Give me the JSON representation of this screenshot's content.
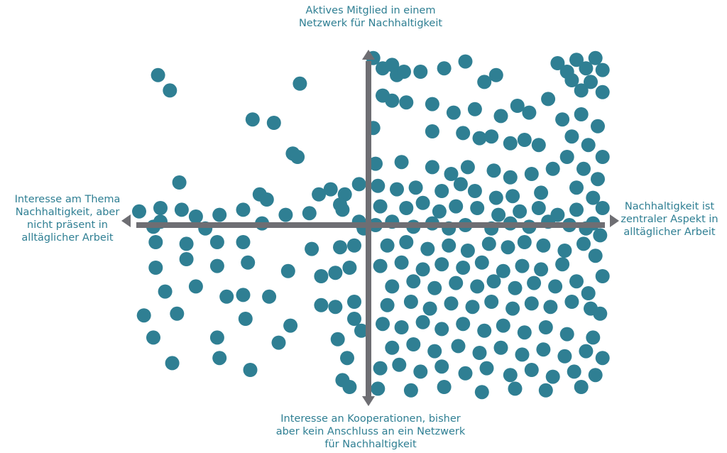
{
  "chart_data": {
    "type": "scatter",
    "title": "",
    "axes": {
      "top": [
        "Aktives Mitglied in einem",
        "Netzwerk für Nachhaltigkeit"
      ],
      "bottom": [
        "Interesse an Kooperationen, bisher",
        "aber kein Anschluss an ein Netzwerk",
        "für Nachhaltigkeit"
      ],
      "left": [
        "Interesse am Thema",
        "Nachhaltigkeit, aber",
        "nicht präsent in",
        "alltäglicher Arbeit"
      ],
      "right": [
        "Nachhaltigkeit ist",
        "zentraler Aspekt in",
        "alltäglicher Arbeit"
      ]
    },
    "xlim": [
      -1,
      1
    ],
    "ylim": [
      -1,
      1
    ],
    "grid": false,
    "legend": "none",
    "colors": {
      "point": "#2f7f93",
      "axis": "#6e6e73",
      "label": "#2f7f93"
    },
    "series": [
      {
        "values": [
          [
            -0.89,
            0.88
          ],
          [
            -0.84,
            0.79
          ],
          [
            -0.49,
            0.62
          ],
          [
            -0.4,
            0.6
          ],
          [
            -0.29,
            0.83
          ],
          [
            -0.32,
            0.42
          ],
          [
            -0.3,
            0.4
          ],
          [
            -0.8,
            0.25
          ],
          [
            -0.46,
            0.18
          ],
          [
            -0.43,
            0.15
          ],
          [
            -0.21,
            0.18
          ],
          [
            -0.16,
            0.21
          ],
          [
            -0.1,
            0.18
          ],
          [
            -0.04,
            0.24
          ],
          [
            -0.12,
            0.12
          ],
          [
            -0.97,
            0.08
          ],
          [
            -0.88,
            0.1
          ],
          [
            -0.79,
            0.09
          ],
          [
            -0.73,
            0.05
          ],
          [
            -0.63,
            0.06
          ],
          [
            -0.53,
            0.09
          ],
          [
            -0.35,
            0.06
          ],
          [
            -0.25,
            0.07
          ],
          [
            -0.11,
            0.09
          ],
          [
            -0.91,
            -0.01
          ],
          [
            -0.88,
            0.02
          ],
          [
            -0.69,
            -0.02
          ],
          [
            -0.45,
            0.01
          ],
          [
            -0.04,
            0.02
          ],
          [
            -0.02,
            -0.02
          ],
          [
            -0.9,
            -0.1
          ],
          [
            -0.77,
            -0.11
          ],
          [
            -0.64,
            -0.1
          ],
          [
            -0.53,
            -0.1
          ],
          [
            -0.24,
            -0.14
          ],
          [
            -0.12,
            -0.13
          ],
          [
            -0.06,
            -0.12
          ],
          [
            -0.9,
            -0.25
          ],
          [
            -0.77,
            -0.2
          ],
          [
            -0.64,
            -0.24
          ],
          [
            -0.51,
            -0.22
          ],
          [
            -0.34,
            -0.27
          ],
          [
            -0.2,
            -0.3
          ],
          [
            -0.14,
            -0.28
          ],
          [
            -0.08,
            -0.25
          ],
          [
            -0.86,
            -0.39
          ],
          [
            -0.73,
            -0.36
          ],
          [
            -0.6,
            -0.42
          ],
          [
            -0.53,
            -0.41
          ],
          [
            -0.42,
            -0.42
          ],
          [
            -0.2,
            -0.47
          ],
          [
            -0.14,
            -0.48
          ],
          [
            -0.06,
            -0.45
          ],
          [
            -0.95,
            -0.53
          ],
          [
            -0.81,
            -0.52
          ],
          [
            -0.52,
            -0.55
          ],
          [
            -0.33,
            -0.59
          ],
          [
            -0.06,
            -0.55
          ],
          [
            -0.03,
            -0.62
          ],
          [
            -0.91,
            -0.66
          ],
          [
            -0.64,
            -0.66
          ],
          [
            -0.38,
            -0.69
          ],
          [
            -0.13,
            -0.67
          ],
          [
            -0.09,
            -0.78
          ],
          [
            -0.83,
            -0.81
          ],
          [
            -0.63,
            -0.78
          ],
          [
            -0.5,
            -0.85
          ],
          [
            -0.11,
            -0.91
          ],
          [
            -0.08,
            -0.95
          ],
          [
            0.02,
            0.98
          ],
          [
            0.06,
            0.92
          ],
          [
            0.1,
            0.94
          ],
          [
            0.12,
            0.88
          ],
          [
            0.15,
            0.9
          ],
          [
            0.22,
            0.9
          ],
          [
            0.32,
            0.92
          ],
          [
            0.41,
            0.96
          ],
          [
            0.49,
            0.84
          ],
          [
            0.54,
            0.88
          ],
          [
            0.06,
            0.76
          ],
          [
            0.1,
            0.73
          ],
          [
            0.16,
            0.72
          ],
          [
            0.27,
            0.71
          ],
          [
            0.36,
            0.66
          ],
          [
            0.45,
            0.68
          ],
          [
            0.56,
            0.64
          ],
          [
            0.63,
            0.7
          ],
          [
            0.68,
            0.66
          ],
          [
            0.76,
            0.74
          ],
          [
            0.02,
            0.57
          ],
          [
            0.27,
            0.55
          ],
          [
            0.4,
            0.54
          ],
          [
            0.47,
            0.51
          ],
          [
            0.52,
            0.52
          ],
          [
            0.6,
            0.48
          ],
          [
            0.66,
            0.5
          ],
          [
            0.72,
            0.47
          ],
          [
            0.03,
            0.36
          ],
          [
            0.14,
            0.37
          ],
          [
            0.27,
            0.34
          ],
          [
            0.35,
            0.3
          ],
          [
            0.42,
            0.34
          ],
          [
            0.53,
            0.32
          ],
          [
            0.6,
            0.28
          ],
          [
            0.69,
            0.3
          ],
          [
            0.78,
            0.33
          ],
          [
            0.04,
            0.23
          ],
          [
            0.12,
            0.21
          ],
          [
            0.2,
            0.22
          ],
          [
            0.31,
            0.2
          ],
          [
            0.39,
            0.24
          ],
          [
            0.45,
            0.2
          ],
          [
            0.54,
            0.16
          ],
          [
            0.61,
            0.17
          ],
          [
            0.73,
            0.19
          ],
          [
            0.05,
            0.11
          ],
          [
            0.16,
            0.1
          ],
          [
            0.23,
            0.13
          ],
          [
            0.3,
            0.08
          ],
          [
            0.37,
            0.11
          ],
          [
            0.46,
            0.1
          ],
          [
            0.55,
            0.06
          ],
          [
            0.64,
            0.08
          ],
          [
            0.72,
            0.1
          ],
          [
            0.8,
            0.06
          ],
          [
            0.88,
            0.09
          ],
          [
            0.03,
            0.0
          ],
          [
            0.1,
            0.02
          ],
          [
            0.19,
            -0.01
          ],
          [
            0.27,
            0.01
          ],
          [
            0.34,
            -0.02
          ],
          [
            0.41,
            0.0
          ],
          [
            0.52,
            -0.02
          ],
          [
            0.6,
            0.01
          ],
          [
            0.68,
            -0.01
          ],
          [
            0.76,
            0.02
          ],
          [
            0.85,
            0.0
          ],
          [
            0.95,
            0.01
          ],
          [
            0.08,
            -0.12
          ],
          [
            0.16,
            -0.1
          ],
          [
            0.25,
            -0.14
          ],
          [
            0.34,
            -0.12
          ],
          [
            0.42,
            -0.15
          ],
          [
            0.51,
            -0.11
          ],
          [
            0.59,
            -0.13
          ],
          [
            0.66,
            -0.1
          ],
          [
            0.74,
            -0.12
          ],
          [
            0.83,
            -0.15
          ],
          [
            0.91,
            -0.11
          ],
          [
            0.05,
            -0.24
          ],
          [
            0.14,
            -0.22
          ],
          [
            0.23,
            -0.26
          ],
          [
            0.31,
            -0.23
          ],
          [
            0.4,
            -0.25
          ],
          [
            0.48,
            -0.22
          ],
          [
            0.57,
            -0.27
          ],
          [
            0.65,
            -0.24
          ],
          [
            0.73,
            -0.26
          ],
          [
            0.82,
            -0.23
          ],
          [
            0.1,
            -0.36
          ],
          [
            0.19,
            -0.33
          ],
          [
            0.28,
            -0.37
          ],
          [
            0.37,
            -0.34
          ],
          [
            0.46,
            -0.36
          ],
          [
            0.53,
            -0.33
          ],
          [
            0.62,
            -0.37
          ],
          [
            0.7,
            -0.34
          ],
          [
            0.79,
            -0.36
          ],
          [
            0.88,
            -0.33
          ],
          [
            0.08,
            -0.47
          ],
          [
            0.18,
            -0.45
          ],
          [
            0.26,
            -0.49
          ],
          [
            0.35,
            -0.46
          ],
          [
            0.44,
            -0.48
          ],
          [
            0.52,
            -0.45
          ],
          [
            0.61,
            -0.49
          ],
          [
            0.69,
            -0.46
          ],
          [
            0.77,
            -0.48
          ],
          [
            0.86,
            -0.45
          ],
          [
            0.94,
            -0.49
          ],
          [
            0.06,
            -0.58
          ],
          [
            0.14,
            -0.6
          ],
          [
            0.23,
            -0.57
          ],
          [
            0.31,
            -0.61
          ],
          [
            0.4,
            -0.58
          ],
          [
            0.49,
            -0.62
          ],
          [
            0.57,
            -0.59
          ],
          [
            0.66,
            -0.63
          ],
          [
            0.75,
            -0.6
          ],
          [
            0.84,
            -0.64
          ],
          [
            0.1,
            -0.72
          ],
          [
            0.19,
            -0.7
          ],
          [
            0.28,
            -0.74
          ],
          [
            0.38,
            -0.71
          ],
          [
            0.47,
            -0.75
          ],
          [
            0.56,
            -0.72
          ],
          [
            0.65,
            -0.76
          ],
          [
            0.74,
            -0.73
          ],
          [
            0.83,
            -0.77
          ],
          [
            0.92,
            -0.74
          ],
          [
            0.05,
            -0.84
          ],
          [
            0.13,
            -0.82
          ],
          [
            0.22,
            -0.86
          ],
          [
            0.31,
            -0.83
          ],
          [
            0.41,
            -0.87
          ],
          [
            0.5,
            -0.84
          ],
          [
            0.6,
            -0.88
          ],
          [
            0.69,
            -0.85
          ],
          [
            0.78,
            -0.89
          ],
          [
            0.87,
            -0.86
          ],
          [
            0.96,
            -0.88
          ],
          [
            0.04,
            -0.96
          ],
          [
            0.18,
            -0.97
          ],
          [
            0.32,
            -0.95
          ],
          [
            0.48,
            -0.98
          ],
          [
            0.62,
            -0.96
          ],
          [
            0.75,
            -0.97
          ],
          [
            0.9,
            -0.95
          ],
          [
            0.8,
            0.95
          ],
          [
            0.84,
            0.9
          ],
          [
            0.88,
            0.97
          ],
          [
            0.92,
            0.92
          ],
          [
            0.96,
            0.98
          ],
          [
            0.99,
            0.91
          ],
          [
            0.86,
            0.85
          ],
          [
            0.94,
            0.84
          ],
          [
            0.99,
            0.78
          ],
          [
            0.9,
            0.79
          ],
          [
            0.82,
            0.62
          ],
          [
            0.9,
            0.65
          ],
          [
            0.97,
            0.58
          ],
          [
            0.86,
            0.52
          ],
          [
            0.93,
            0.47
          ],
          [
            0.99,
            0.4
          ],
          [
            0.84,
            0.4
          ],
          [
            0.91,
            0.33
          ],
          [
            0.97,
            0.27
          ],
          [
            0.88,
            0.22
          ],
          [
            0.95,
            0.16
          ],
          [
            0.99,
            0.1
          ],
          [
            0.92,
            -0.02
          ],
          [
            0.98,
            -0.06
          ],
          [
            0.96,
            -0.18
          ],
          [
            0.99,
            -0.3
          ],
          [
            0.93,
            -0.4
          ],
          [
            0.98,
            -0.52
          ],
          [
            0.95,
            -0.66
          ],
          [
            0.99,
            -0.78
          ]
        ]
      }
    ]
  }
}
